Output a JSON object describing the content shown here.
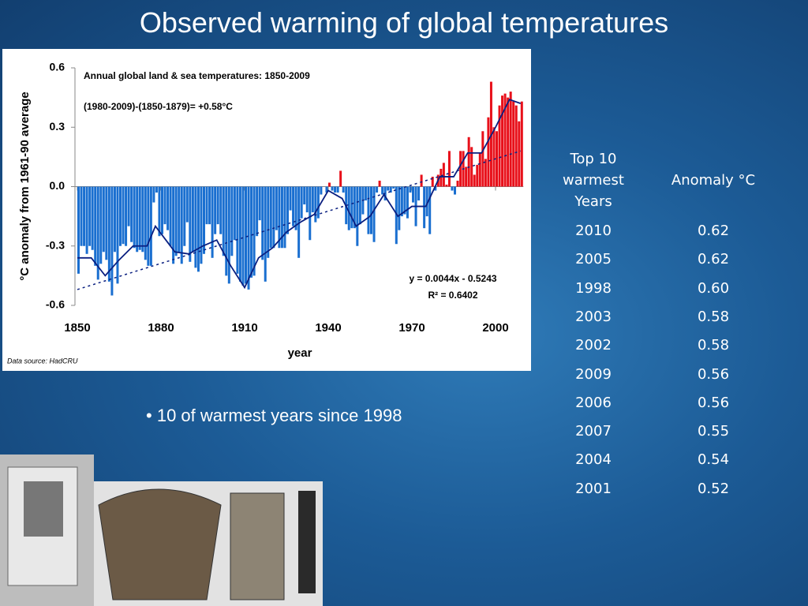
{
  "slide_title": "Observed warming of global temperatures",
  "chart_data": {
    "type": "bar",
    "title": "Annual global land & sea temperatures: 1850-2009",
    "annotations": [
      "(1980-2009)-(1850-1879)= +0.58°C",
      "y = 0.0044x - 0.5243",
      "R² = 0.6402"
    ],
    "source": "Data source: HadCRU",
    "x_label": "year",
    "y_label": "°C anomaly from 1961-90 average",
    "xlim": [
      1850,
      2010
    ],
    "xticks": [
      1850,
      1880,
      1910,
      1940,
      1970,
      2000
    ],
    "ylim": [
      -0.6,
      0.6
    ],
    "yticks": [
      0.6,
      0.3,
      {
        "value": 0,
        "label": "0.0"
      },
      -0.3,
      -0.6
    ],
    "colors": {
      "positive": "#e8101a",
      "negative": "#1a6fd0",
      "edge": "#0a3fa0"
    },
    "x": [
      1850,
      1851,
      1852,
      1853,
      1854,
      1855,
      1856,
      1857,
      1858,
      1859,
      1860,
      1861,
      1862,
      1863,
      1864,
      1865,
      1866,
      1867,
      1868,
      1869,
      1870,
      1871,
      1872,
      1873,
      1874,
      1875,
      1876,
      1877,
      1878,
      1879,
      1880,
      1881,
      1882,
      1883,
      1884,
      1885,
      1886,
      1887,
      1888,
      1889,
      1890,
      1891,
      1892,
      1893,
      1894,
      1895,
      1896,
      1897,
      1898,
      1899,
      1900,
      1901,
      1902,
      1903,
      1904,
      1905,
      1906,
      1907,
      1908,
      1909,
      1910,
      1911,
      1912,
      1913,
      1914,
      1915,
      1916,
      1917,
      1918,
      1919,
      1920,
      1921,
      1922,
      1923,
      1924,
      1925,
      1926,
      1927,
      1928,
      1929,
      1930,
      1931,
      1932,
      1933,
      1934,
      1935,
      1936,
      1937,
      1938,
      1939,
      1940,
      1941,
      1942,
      1943,
      1944,
      1945,
      1946,
      1947,
      1948,
      1949,
      1950,
      1951,
      1952,
      1953,
      1954,
      1955,
      1956,
      1957,
      1958,
      1959,
      1960,
      1961,
      1962,
      1963,
      1964,
      1965,
      1966,
      1967,
      1968,
      1969,
      1970,
      1971,
      1972,
      1973,
      1974,
      1975,
      1976,
      1977,
      1978,
      1979,
      1980,
      1981,
      1982,
      1983,
      1984,
      1985,
      1986,
      1987,
      1988,
      1989,
      1990,
      1991,
      1992,
      1993,
      1994,
      1995,
      1996,
      1997,
      1998,
      1999,
      2000,
      2001,
      2002,
      2003,
      2004,
      2005,
      2006,
      2007,
      2008,
      2009
    ],
    "values": [
      -0.44,
      -0.3,
      -0.3,
      -0.34,
      -0.3,
      -0.32,
      -0.4,
      -0.47,
      -0.39,
      -0.33,
      -0.37,
      -0.48,
      -0.55,
      -0.33,
      -0.49,
      -0.3,
      -0.29,
      -0.3,
      -0.2,
      -0.28,
      -0.31,
      -0.33,
      -0.32,
      -0.33,
      -0.37,
      -0.4,
      -0.4,
      -0.08,
      -0.03,
      -0.25,
      -0.24,
      -0.19,
      -0.22,
      -0.3,
      -0.39,
      -0.35,
      -0.33,
      -0.39,
      -0.3,
      -0.18,
      -0.38,
      -0.33,
      -0.41,
      -0.43,
      -0.39,
      -0.34,
      -0.19,
      -0.19,
      -0.36,
      -0.24,
      -0.19,
      -0.24,
      -0.35,
      -0.45,
      -0.49,
      -0.35,
      -0.27,
      -0.44,
      -0.48,
      -0.5,
      -0.49,
      -0.52,
      -0.46,
      -0.45,
      -0.25,
      -0.17,
      -0.37,
      -0.48,
      -0.36,
      -0.31,
      -0.31,
      -0.22,
      -0.31,
      -0.31,
      -0.31,
      -0.24,
      -0.12,
      -0.2,
      -0.22,
      -0.36,
      -0.16,
      -0.09,
      -0.13,
      -0.27,
      -0.13,
      -0.18,
      -0.16,
      -0.04,
      0.0,
      -0.03,
      0.02,
      -0.02,
      -0.03,
      -0.03,
      0.08,
      -0.03,
      -0.19,
      -0.22,
      -0.21,
      -0.21,
      -0.3,
      -0.19,
      -0.14,
      -0.07,
      -0.24,
      -0.24,
      -0.28,
      -0.03,
      0.03,
      -0.04,
      -0.07,
      -0.02,
      -0.03,
      -0.01,
      -0.29,
      -0.22,
      -0.15,
      -0.14,
      -0.16,
      -0.03,
      -0.08,
      -0.2,
      -0.07,
      0.06,
      -0.21,
      -0.15,
      -0.24,
      0.05,
      -0.02,
      0.06,
      0.09,
      0.12,
      0.01,
      0.18,
      -0.02,
      -0.04,
      0.03,
      0.18,
      0.18,
      0.1,
      0.25,
      0.2,
      0.06,
      0.11,
      0.17,
      0.28,
      0.14,
      0.35,
      0.53,
      0.3,
      0.28,
      0.41,
      0.46,
      0.47,
      0.45,
      0.48,
      0.43,
      0.41,
      0.33,
      0.43
    ],
    "smooth": {
      "color": "#0a1f80",
      "x": [
        1850,
        1855,
        1860,
        1865,
        1870,
        1875,
        1878,
        1885,
        1890,
        1895,
        1900,
        1905,
        1910,
        1915,
        1920,
        1925,
        1930,
        1935,
        1940,
        1945,
        1950,
        1955,
        1960,
        1965,
        1970,
        1975,
        1980,
        1985,
        1990,
        1995,
        2000,
        2005,
        2009
      ],
      "values": [
        -0.36,
        -0.36,
        -0.45,
        -0.37,
        -0.3,
        -0.3,
        -0.2,
        -0.33,
        -0.34,
        -0.3,
        -0.27,
        -0.4,
        -0.51,
        -0.36,
        -0.31,
        -0.23,
        -0.18,
        -0.14,
        -0.02,
        -0.06,
        -0.2,
        -0.15,
        -0.04,
        -0.15,
        -0.1,
        -0.1,
        0.05,
        0.05,
        0.17,
        0.17,
        0.3,
        0.44,
        0.42
      ]
    },
    "trend": {
      "color": "#0a1f80",
      "x": [
        1850,
        2009
      ],
      "values": [
        -0.52,
        0.18
      ]
    }
  },
  "table": {
    "header": [
      "Top 10 warmest Years",
      "Anomaly °C"
    ],
    "rows": [
      [
        "2010",
        "0.62"
      ],
      [
        "2005",
        "0.62"
      ],
      [
        "1998",
        "0.60"
      ],
      [
        "2003",
        "0.58"
      ],
      [
        "2002",
        "0.58"
      ],
      [
        "2009",
        "0.56"
      ],
      [
        "2006",
        "0.56"
      ],
      [
        "2007",
        "0.55"
      ],
      [
        "2004",
        "0.54"
      ],
      [
        "2001",
        "0.52"
      ]
    ]
  },
  "bullet": "10 of warmest years since 1998"
}
